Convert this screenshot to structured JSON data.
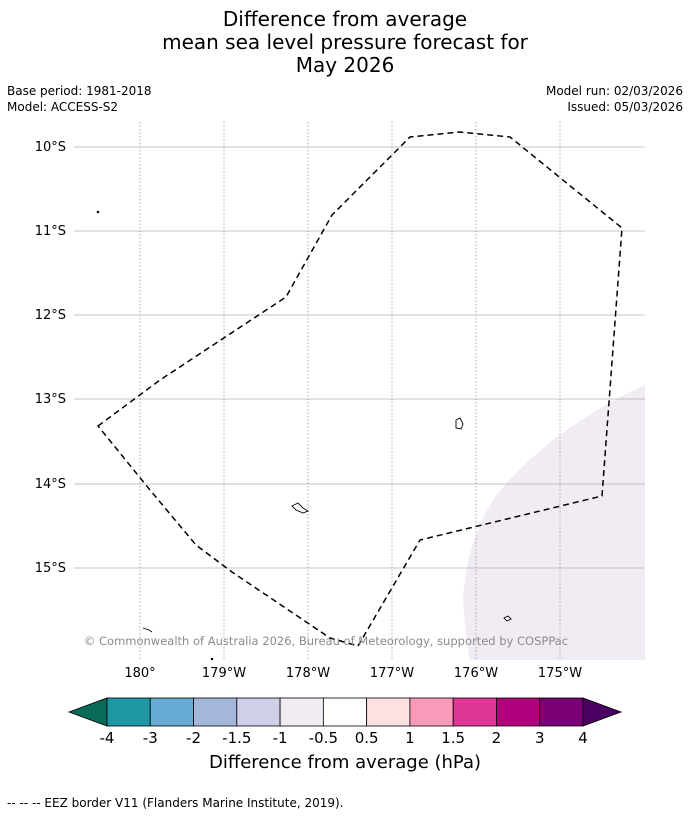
{
  "title": {
    "line1": "Difference from average",
    "line2": "mean sea level pressure forecast for",
    "line3": "May 2026"
  },
  "meta": {
    "base_period": "Base period: 1981-2018",
    "model": "Model: ACCESS-S2",
    "model_run": "Model run: 02/03/2026",
    "issued": "Issued: 05/03/2026"
  },
  "map": {
    "lat_ticks": [
      "10°S",
      "11°S",
      "12°S",
      "13°S",
      "14°S",
      "15°S"
    ],
    "lon_ticks": [
      "180°",
      "179°W",
      "178°W",
      "177°W",
      "176°W",
      "175°W"
    ],
    "copyright": "© Commonwealth of Australia 2026, Bureau of Meteorology, supported by COSPPac",
    "colors": {
      "anomaly_fill": "#f1ebf4",
      "gridline": "#b0b0b0",
      "land": "#ffffff"
    }
  },
  "colorbar": {
    "labels": [
      "-4",
      "-3",
      "-2",
      "-1.5",
      "-1",
      "-0.5",
      "0.5",
      "1",
      "1.5",
      "2",
      "3",
      "4"
    ],
    "colors": [
      "#0b6b5b",
      "#1e96a4",
      "#64aad2",
      "#a4b7db",
      "#cdd0e6",
      "#f1ebf4",
      "#ffffff",
      "#fde0e0",
      "#f89ab8",
      "#de3596",
      "#b0007c",
      "#7b0078",
      "#4a0060"
    ],
    "label": "Difference from average (hPa)"
  },
  "footer": "--  --  -- EEZ border V11 (Flanders Marine Institute, 2019)."
}
